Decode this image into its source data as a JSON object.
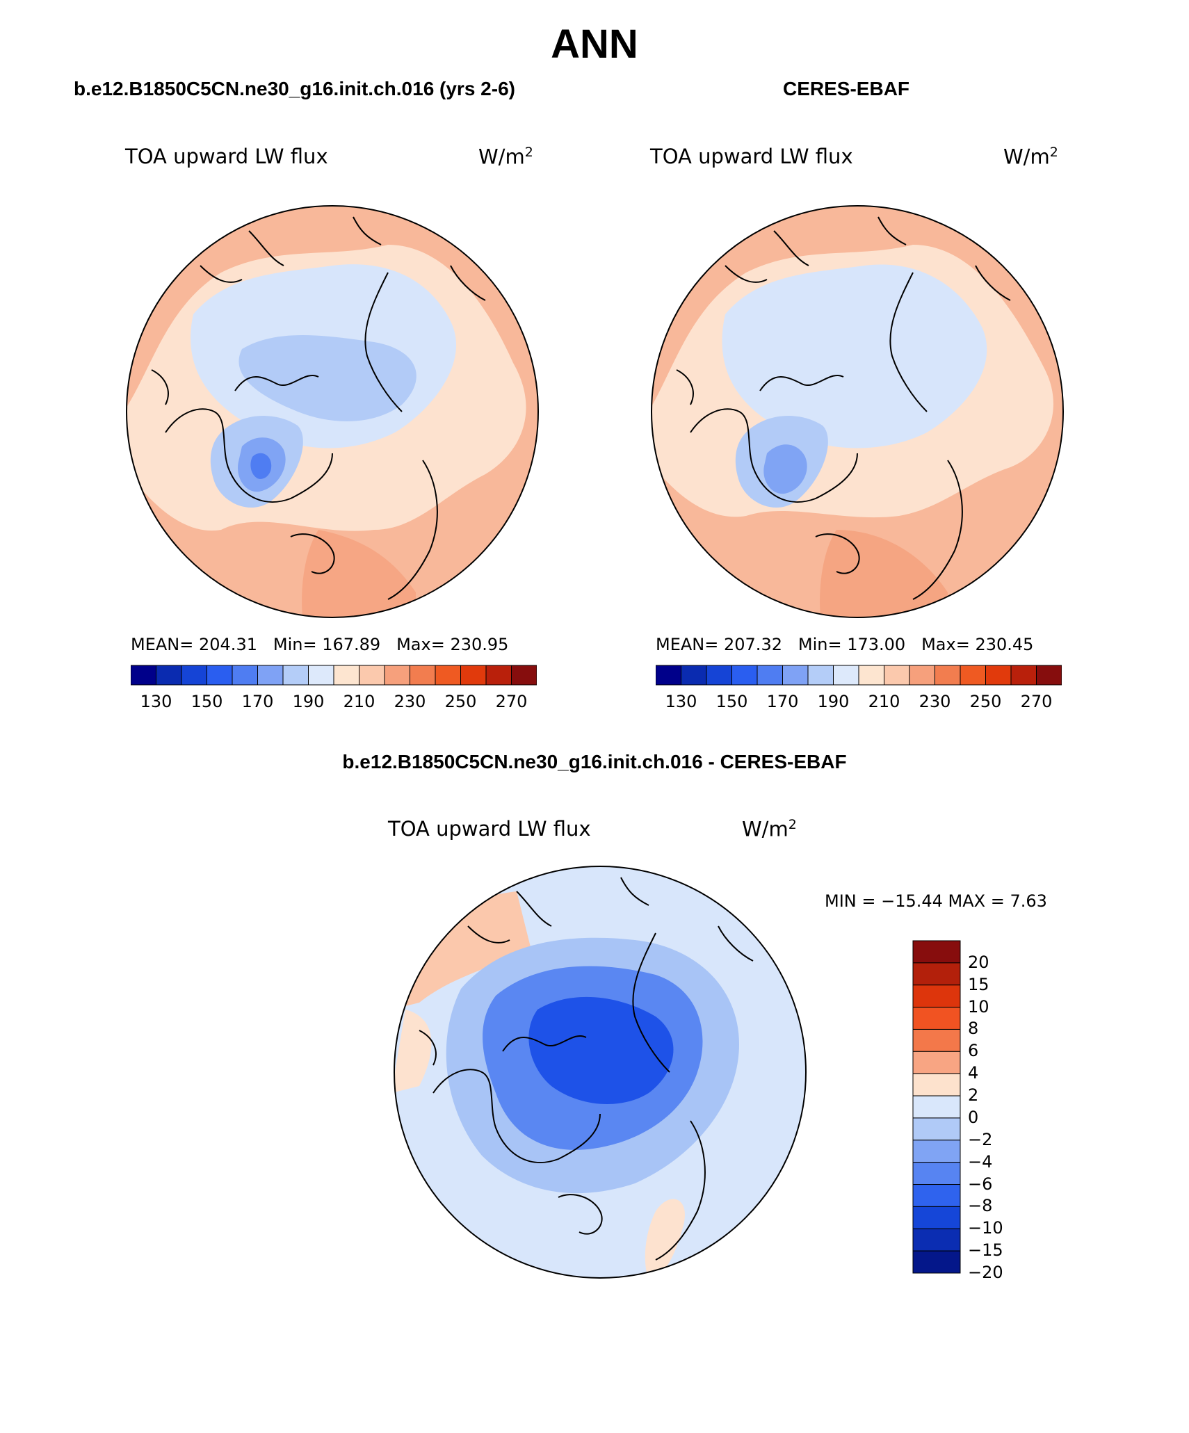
{
  "title": "ANN",
  "panels": {
    "model": {
      "title": "b.e12.B1850C5CN.ne30_g16.init.ch.016 (yrs 2-6)",
      "variable": "TOA upward LW flux",
      "units": "W/m",
      "units_sup": "2",
      "mean_label": "MEAN=",
      "mean": "204.31",
      "min_label": "Min=",
      "min": "167.89",
      "max_label": "Max=",
      "max": "230.95"
    },
    "obs": {
      "title": "CERES-EBAF",
      "variable": "TOA upward LW flux",
      "units": "W/m",
      "units_sup": "2",
      "mean_label": "MEAN=",
      "mean": "207.32",
      "min_label": "Min=",
      "min": "173.00",
      "max_label": "Max=",
      "max": "230.45"
    },
    "diff": {
      "title": "b.e12.B1850C5CN.ne30_g16.init.ch.016 - CERES-EBAF",
      "variable": "TOA upward LW flux",
      "units": "W/m",
      "units_sup": "2",
      "minmax_text": "MIN = −15.44 MAX =    7.63"
    }
  },
  "colorbar_abs": {
    "colors": [
      "#00008a",
      "#0a2bb0",
      "#1544d6",
      "#2a5ef0",
      "#4f7df2",
      "#7fa2f5",
      "#b4cdf8",
      "#dde9fb",
      "#fde5d0",
      "#fbc9ad",
      "#f6a07c",
      "#f27d4f",
      "#ef5a22",
      "#e13a0c",
      "#b9200b",
      "#860d0d"
    ],
    "tick_labels": [
      "130",
      "150",
      "170",
      "190",
      "210",
      "230",
      "250",
      "270"
    ]
  },
  "colorbar_diff": {
    "colors": [
      "#870d0d",
      "#b3200b",
      "#dd350c",
      "#f15322",
      "#f3784a",
      "#f8a583",
      "#fde2cd",
      "#d9e7fb",
      "#b0caf7",
      "#80a4f4",
      "#5784f2",
      "#2f63ee",
      "#1546d8",
      "#0b2db2",
      "#04178a"
    ],
    "tick_labels": [
      "20",
      "15",
      "10",
      "8",
      "6",
      "4",
      "2",
      "0",
      "−2",
      "−4",
      "−6",
      "−8",
      "−10",
      "−15",
      "−20"
    ]
  },
  "map_colors": {
    "ocean_warm": "#f8b89a",
    "warm_light": "#fde2cf",
    "warm_mid": "#fbc8ac",
    "warm_strong": "#f5a17e",
    "cold_light": "#d7e5fb",
    "cold_mid": "#b2cbf7",
    "cold_strong": "#80a4f4",
    "cold_deep": "#4f7df2",
    "diff_blue_deep": "#1e52e8",
    "diff_blue_mid": "#5a87f2",
    "diff_blue_light": "#a8c4f6",
    "diff_pale": "#d8e6fb"
  }
}
